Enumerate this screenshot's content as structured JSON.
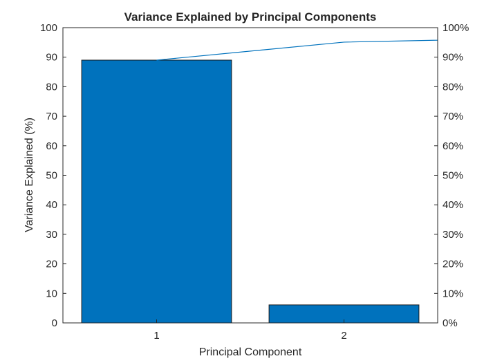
{
  "chart_data": {
    "type": "bar",
    "title": "Variance Explained by Principal Components",
    "xlabel": "Principal Component",
    "ylabel": "Variance Explained (%)",
    "categories": [
      "1",
      "2"
    ],
    "values": [
      89,
      6.1
    ],
    "ylim": [
      0,
      100
    ],
    "yticks": [
      0,
      10,
      20,
      30,
      40,
      50,
      60,
      70,
      80,
      90,
      100
    ],
    "y2lim": [
      0,
      100
    ],
    "y2ticks": [
      "0%",
      "10%",
      "20%",
      "30%",
      "40%",
      "50%",
      "60%",
      "70%",
      "80%",
      "90%",
      "100%"
    ],
    "cumulative_line": {
      "x": [
        1,
        2,
        3
      ],
      "values": [
        89,
        95.1,
        96.4
      ]
    },
    "bar_color": "#0072BD",
    "line_color": "#0072BD",
    "grid": false,
    "legend": "none"
  }
}
